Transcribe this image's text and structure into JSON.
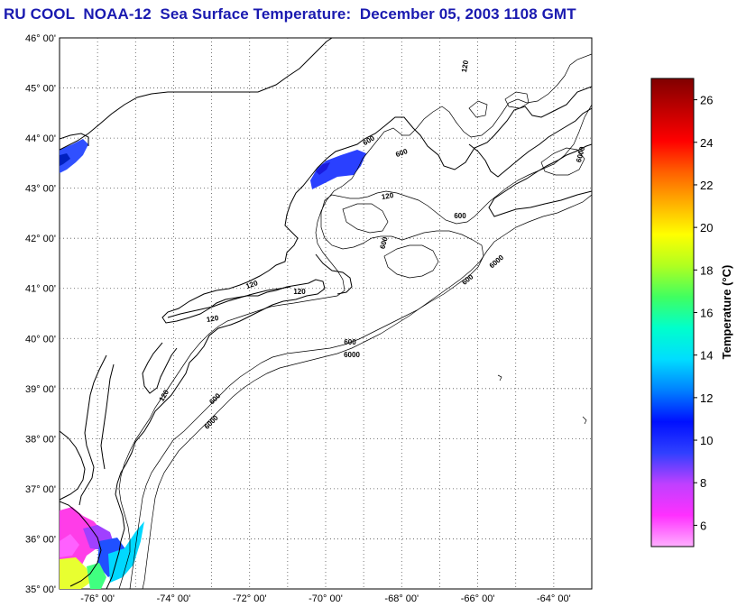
{
  "title": "RU COOL  NOAA-12  Sea Surface Temperature:  December 05, 2003 1108 GMT",
  "map": {
    "lat_labels": [
      "46° 00'",
      "45° 00'",
      "44° 00'",
      "43° 00'",
      "42° 00'",
      "41° 00'",
      "40° 00'",
      "39° 00'",
      "38° 00'",
      "37° 00'",
      "36° 00'",
      "35° 00'"
    ],
    "lon_labels": [
      "-76° 00'",
      "-74° 00'",
      "-72° 00'",
      "-70° 00'",
      "-68° 00'",
      "-66° 00'",
      "-64° 00'"
    ],
    "lat_range": [
      35,
      46
    ],
    "lon_range": [
      -77,
      -63
    ],
    "contour_labels": [
      "120",
      "600",
      "600",
      "6000",
      "120",
      "600",
      "600",
      "120",
      "6000",
      "600",
      "6000",
      "120",
      "600",
      "120",
      "120",
      "6000",
      "600"
    ],
    "colors": {
      "coast": "#000000",
      "grid": "#555555",
      "sst_cold": "#1e3cff",
      "sst_pink": "#ff40e0"
    }
  },
  "colorbar": {
    "title": "Temperature (°C)",
    "ticks": [
      "26",
      "24",
      "22",
      "20",
      "18",
      "16",
      "14",
      "12",
      "10",
      "8",
      "6"
    ],
    "min": 5,
    "max": 27,
    "colors": [
      "#ffb0ff",
      "#ff30ff",
      "#c040ff",
      "#3040ff",
      "#0010ff",
      "#0080ff",
      "#00ddff",
      "#00ffcc",
      "#40ff60",
      "#b0ff20",
      "#ffff00",
      "#ffb000",
      "#ff6000",
      "#ff0000",
      "#c00000",
      "#800000"
    ]
  }
}
